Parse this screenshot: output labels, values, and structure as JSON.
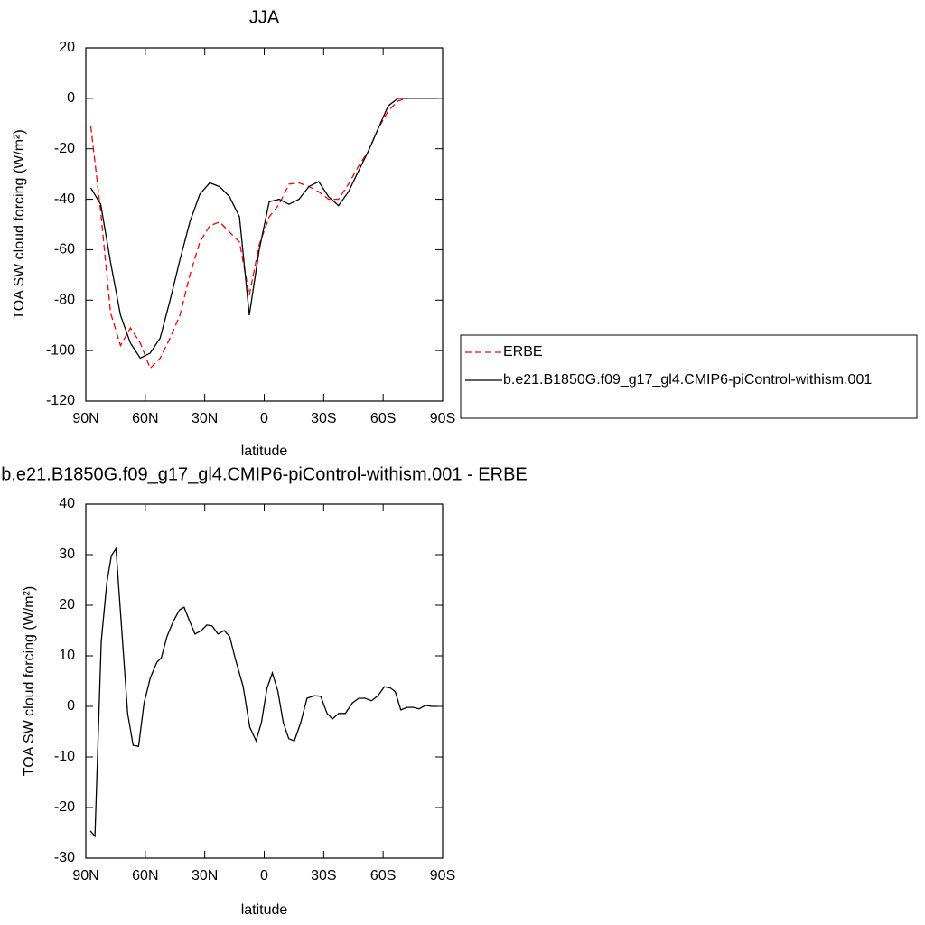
{
  "chart_data": [
    {
      "type": "line",
      "title": "JJA",
      "xlabel": "latitude",
      "ylabel": "TOA SW cloud forcing (W/m²)",
      "x": [
        87.5,
        82.5,
        77.5,
        72.5,
        67.5,
        62.5,
        57.5,
        52.5,
        47.5,
        42.5,
        37.5,
        32.5,
        27.5,
        22.5,
        17.5,
        12.5,
        7.5,
        2.5,
        -2.5,
        -7.5,
        -12.5,
        -17.5,
        -22.5,
        -27.5,
        -32.5,
        -37.5,
        -42.5,
        -47.5,
        -52.5,
        -57.5,
        -62.5,
        -67.5,
        -72.5,
        -77.5,
        -82.5,
        -87.5
      ],
      "series": [
        {
          "name": "ERBE",
          "color": "#ff0000",
          "dash": true,
          "values": [
            -11,
            -45,
            -85,
            -98,
            -91,
            -97,
            -107,
            -103,
            -95,
            -86,
            -70,
            -57,
            -50.5,
            -49,
            -53,
            -57,
            -78,
            -58,
            -47,
            -42,
            -34,
            -33.5,
            -35,
            -37,
            -40,
            -40,
            -34,
            -27,
            -21,
            -12,
            -5,
            -1,
            0,
            0,
            0,
            0
          ]
        },
        {
          "name": "b.e21.B1850G.f09_g17_gl4.CMIP6-piControl-withism.001",
          "color": "#000000",
          "dash": false,
          "values": [
            -35.5,
            -42,
            -65,
            -86,
            -97,
            -103,
            -101,
            -95,
            -80,
            -64,
            -49,
            -38,
            -33.5,
            -35,
            -39,
            -47,
            -86,
            -60,
            -41,
            -40,
            -42,
            -40,
            -35,
            -33,
            -39,
            -42.5,
            -37,
            -29,
            -21,
            -12,
            -3,
            0,
            0,
            0,
            0,
            0
          ]
        }
      ],
      "xlim": [
        90,
        -90
      ],
      "xticks": [
        {
          "value": 90,
          "label": "90N"
        },
        {
          "value": 60,
          "label": "60N"
        },
        {
          "value": 30,
          "label": "30N"
        },
        0,
        {
          "value": -30,
          "label": "30S"
        },
        {
          "value": -60,
          "label": "60S"
        },
        {
          "value": -90,
          "label": "90S"
        }
      ],
      "ylim": [
        -120,
        20
      ],
      "yticks": [
        -120,
        -100,
        -80,
        -60,
        -40,
        -20,
        0,
        20
      ],
      "legend": "right"
    },
    {
      "type": "line",
      "title": "b.e21.B1850G.f09_g17_gl4.CMIP6-piControl-withism.001 - ERBE",
      "xlabel": "latitude",
      "ylabel": "TOA SW cloud forcing (W/m²)",
      "x": [
        87.7,
        85.4,
        82.2,
        79.4,
        77.1,
        74.8,
        68.9,
        66.1,
        63.4,
        60.6,
        57.4,
        54.2,
        51.9,
        49.1,
        45.9,
        42.7,
        40.4,
        37.6,
        34.9,
        31.7,
        28.9,
        26.2,
        23.4,
        20.2,
        17.4,
        14.7,
        10.6,
        7.3,
        4.1,
        1.4,
        -1.4,
        -4.1,
        -6.9,
        -9.6,
        -12.4,
        -15.2,
        -18.4,
        -21.6,
        -25.3,
        -28.5,
        -31.7,
        -34.4,
        -37.6,
        -40.9,
        -44.5,
        -47.7,
        -50.9,
        -54.1,
        -57.4,
        -60.6,
        -63.8,
        -66.1,
        -68.9,
        -72.1,
        -75.3,
        -78.1,
        -81.3,
        -84.5,
        -87.3
      ],
      "values": [
        -24.6,
        -25.7,
        12.9,
        24.5,
        29.8,
        31.2,
        -1.4,
        -7.7,
        -7.9,
        0.7,
        5.7,
        8.7,
        9.6,
        13.8,
        16.8,
        19.1,
        19.6,
        16.8,
        14.3,
        15.0,
        16.1,
        15.9,
        14.3,
        15.0,
        13.8,
        9.6,
        3.9,
        -4.1,
        -6.8,
        -3.2,
        3.6,
        6.6,
        3.0,
        -3.2,
        -6.4,
        -6.8,
        -3.2,
        1.6,
        2.1,
        2.0,
        -1.4,
        -2.5,
        -1.4,
        -1.4,
        0.7,
        1.6,
        1.6,
        1.1,
        2.1,
        3.9,
        3.6,
        2.9,
        -0.7,
        -0.2,
        -0.2,
        -0.5,
        0.2,
        0,
        0
      ],
      "color": "#000000",
      "xlim": [
        90,
        -90
      ],
      "xticks": [
        {
          "value": 90,
          "label": "90N"
        },
        {
          "value": 60,
          "label": "60N"
        },
        {
          "value": 30,
          "label": "30N"
        },
        0,
        {
          "value": -30,
          "label": "30S"
        },
        {
          "value": -60,
          "label": "60S"
        },
        {
          "value": -90,
          "label": "90S"
        }
      ],
      "ylim": [
        -30,
        40
      ],
      "yticks": [
        -30,
        -20,
        -10,
        0,
        10,
        20,
        30,
        40
      ]
    }
  ]
}
